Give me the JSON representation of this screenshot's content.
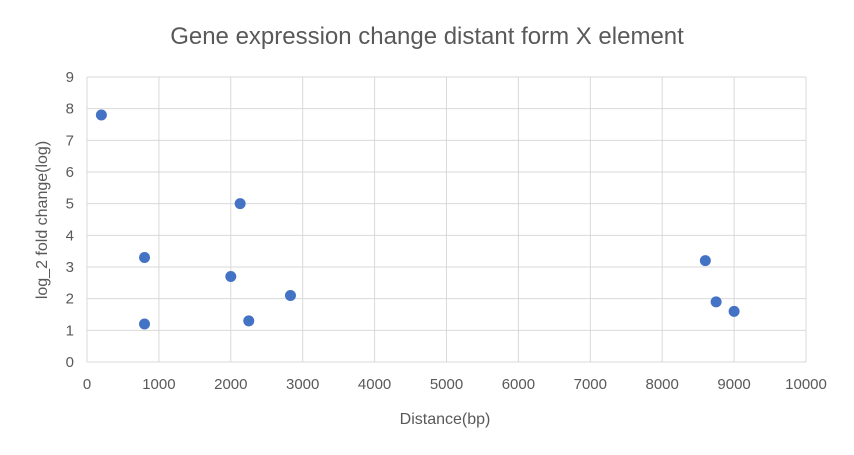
{
  "chart_data": {
    "type": "scatter",
    "title": "Gene expression change distant form X element",
    "xlabel": "Distance(bp)",
    "ylabel": "log_2 fold change(log)",
    "xlim": [
      0,
      10000
    ],
    "ylim": [
      0,
      9
    ],
    "x_ticks": [
      "0",
      "1000",
      "2000",
      "3000",
      "4000",
      "5000",
      "6000",
      "7000",
      "8000",
      "9000",
      "10000"
    ],
    "y_ticks": [
      "0",
      "1",
      "2",
      "3",
      "4",
      "5",
      "6",
      "7",
      "8",
      "9"
    ],
    "grid": true,
    "legend": "none",
    "marker_color": "#4472C4",
    "points": [
      {
        "x": 200,
        "y": 7.8
      },
      {
        "x": 800,
        "y": 3.3
      },
      {
        "x": 800,
        "y": 1.2
      },
      {
        "x": 2000,
        "y": 2.7
      },
      {
        "x": 2130,
        "y": 5.0
      },
      {
        "x": 2250,
        "y": 1.3
      },
      {
        "x": 2830,
        "y": 2.1
      },
      {
        "x": 8600,
        "y": 3.2
      },
      {
        "x": 8750,
        "y": 1.9
      },
      {
        "x": 9000,
        "y": 1.6
      }
    ]
  }
}
